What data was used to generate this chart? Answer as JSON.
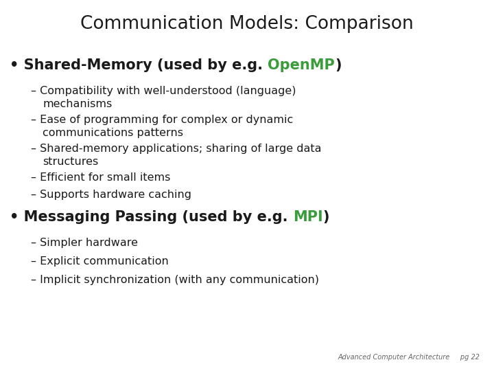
{
  "title": "Communication Models: Comparison",
  "bg": "#ffffff",
  "tc": "#1a1a1a",
  "green": "#3a9c3a",
  "title_fs": 19,
  "bullet_fs": 15,
  "sub_fs": 11.5,
  "footer_fs": 7,
  "footer": "Advanced Computer Architecture     pg 22",
  "b1_pre": "• Shared-Memory (used by e.g. ",
  "b1_hi": "OpenMP",
  "b1_post": ")",
  "b1_items": [
    [
      "– Compatibility with well-understood (language)",
      "   mechanisms"
    ],
    [
      "– Ease of programming for complex or dynamic",
      "   communications patterns"
    ],
    [
      "– Shared-memory applications; sharing of large data",
      "   structures"
    ],
    [
      "– Efficient for small items"
    ],
    [
      "– Supports hardware caching"
    ]
  ],
  "b2_pre": "• Messaging Passing (used by e.g. ",
  "b2_hi": "MPI",
  "b2_post": ")",
  "b2_items": [
    [
      "– Simpler hardware"
    ],
    [
      "– Explicit communication"
    ],
    [
      "– Implicit synchronization (with any communication)"
    ]
  ]
}
